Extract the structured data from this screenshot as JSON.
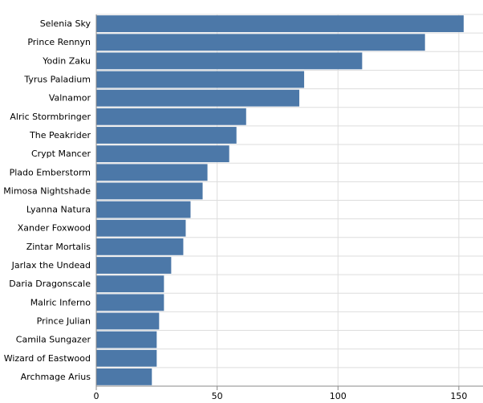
{
  "chart_data": {
    "type": "bar",
    "orientation": "horizontal",
    "title": "",
    "xlabel": "",
    "ylabel": "",
    "categories": [
      "Selenia Sky",
      "Prince Rennyn",
      "Yodin Zaku",
      "Tyrus Paladium",
      "Valnamor",
      "Alric Stormbringer",
      "The Peakrider",
      "Crypt Mancer",
      "Plado Emberstorm",
      "Mimosa Nightshade",
      "Lyanna Natura",
      "Xander Foxwood",
      "Zintar Mortalis",
      "Jarlax the Undead",
      "Daria Dragonscale",
      "Malric Inferno",
      "Prince Julian",
      "Camila Sungazer",
      "Wizard of Eastwood",
      "Archmage Arius"
    ],
    "values": [
      152,
      136,
      110,
      86,
      84,
      62,
      58,
      55,
      46,
      44,
      39,
      37,
      36,
      31,
      28,
      28,
      26,
      25,
      25,
      23
    ],
    "xlim": [
      0,
      160
    ],
    "xticks": [
      0,
      50,
      100,
      150
    ],
    "grid": true,
    "bar_color": "#4c78a8"
  }
}
